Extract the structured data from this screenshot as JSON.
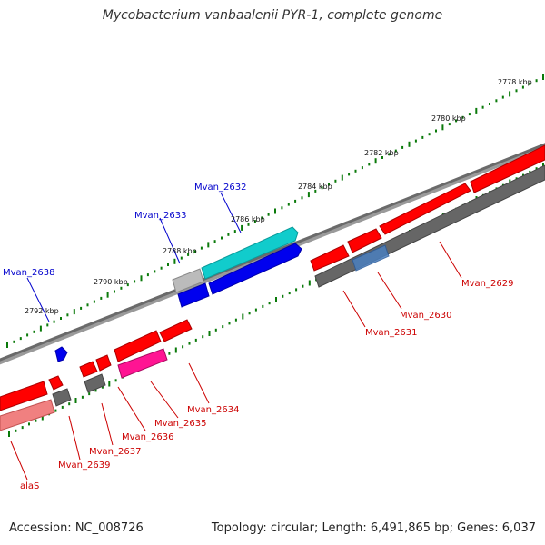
{
  "title": "Mycobacterium vanbaalenii PYR-1, complete genome",
  "footer": {
    "accession": "Accession: NC_008726",
    "summary": "Topology: circular; Length: 6,491,865 bp; Genes: 6,037"
  },
  "colors": {
    "forward": "#ff0000",
    "reverse": "#0000ee",
    "pseudo": "#666666",
    "rna": "#ff1493",
    "cyan": "#11cccc",
    "tick": "#0a7a0a",
    "label_forward": "#cc0000",
    "label_reverse": "#0000cc"
  },
  "scale_labels": [
    "2778 kbp",
    "2780 kbp",
    "2782 kbp",
    "2784 kbp",
    "2786 kbp",
    "2788 kbp",
    "2790 kbp",
    "2792 kbp"
  ],
  "gene_labels": [
    {
      "text": "Mvan_2632",
      "strand": "reverse"
    },
    {
      "text": "Mvan_2633",
      "strand": "reverse"
    },
    {
      "text": "Mvan_2638",
      "strand": "reverse"
    },
    {
      "text": "Mvan_2629",
      "strand": "forward"
    },
    {
      "text": "Mvan_2630",
      "strand": "forward"
    },
    {
      "text": "Mvan_2631",
      "strand": "forward"
    },
    {
      "text": "Mvan_2634",
      "strand": "forward"
    },
    {
      "text": "Mvan_2635",
      "strand": "forward"
    },
    {
      "text": "Mvan_2636",
      "strand": "forward"
    },
    {
      "text": "Mvan_2637",
      "strand": "forward"
    },
    {
      "text": "Mvan_2639",
      "strand": "forward"
    },
    {
      "text": "alaS",
      "strand": "forward"
    }
  ]
}
